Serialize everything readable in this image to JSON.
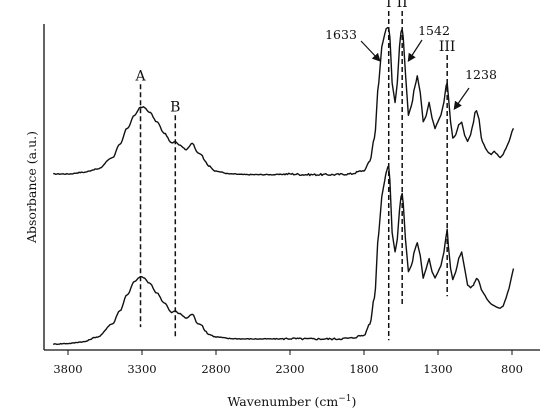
{
  "chart_data": {
    "type": "line",
    "xlabel": "Wavenumber (cm",
    "xlabel_sup": "−1",
    "xlabel_close": ")",
    "ylabel": "Absorbance (a.u.)",
    "x_reversed": true,
    "xlim": [
      4000,
      750
    ],
    "ylim": [
      0,
      1
    ],
    "grid": false,
    "legend": "none",
    "xticks": [
      3800,
      3300,
      2800,
      2300,
      1800,
      1300,
      800
    ],
    "xtick_labels": [
      "3800",
      "3300",
      "2800",
      "2300",
      "1800",
      "1300",
      "800"
    ],
    "series": [
      {
        "color": "#111111",
        "x": [
          3900,
          3800,
          3700,
          3600,
          3500,
          3450,
          3400,
          3350,
          3310,
          3290,
          3250,
          3200,
          3150,
          3100,
          3075,
          3050,
          3000,
          2960,
          2925,
          2900,
          2875,
          2850,
          2800,
          2700,
          2600,
          2500,
          2400,
          2300,
          2200,
          2100,
          2000,
          1900,
          1800,
          1760,
          1730,
          1700,
          1680,
          1660,
          1650,
          1640,
          1633,
          1625,
          1610,
          1590,
          1575,
          1560,
          1550,
          1542,
          1535,
          1520,
          1500,
          1480,
          1455,
          1440,
          1420,
          1400,
          1380,
          1360,
          1340,
          1320,
          1300,
          1280,
          1260,
          1245,
          1238,
          1230,
          1215,
          1200,
          1180,
          1160,
          1140,
          1120,
          1100,
          1080,
          1060,
          1050,
          1040,
          1030,
          1000,
          980,
          960,
          940,
          920,
          900,
          880,
          860,
          840,
          820,
          800,
          790
        ],
        "y": [
          0.54,
          0.54,
          0.545,
          0.555,
          0.59,
          0.63,
          0.68,
          0.72,
          0.745,
          0.745,
          0.73,
          0.7,
          0.665,
          0.635,
          0.64,
          0.63,
          0.615,
          0.635,
          0.605,
          0.6,
          0.58,
          0.565,
          0.548,
          0.54,
          0.538,
          0.538,
          0.538,
          0.54,
          0.538,
          0.538,
          0.538,
          0.54,
          0.55,
          0.58,
          0.65,
          0.82,
          0.93,
          0.97,
          0.985,
          0.988,
          0.988,
          0.96,
          0.82,
          0.76,
          0.82,
          0.93,
          0.975,
          0.985,
          0.96,
          0.85,
          0.72,
          0.75,
          0.81,
          0.84,
          0.79,
          0.7,
          0.72,
          0.76,
          0.71,
          0.68,
          0.7,
          0.72,
          0.76,
          0.81,
          0.82,
          0.78,
          0.7,
          0.65,
          0.66,
          0.69,
          0.7,
          0.66,
          0.64,
          0.66,
          0.7,
          0.73,
          0.735,
          0.72,
          0.64,
          0.62,
          0.605,
          0.6,
          0.61,
          0.6,
          0.59,
          0.6,
          0.62,
          0.64,
          0.67,
          0.68
        ]
      },
      {
        "color": "#111111",
        "x": [
          3900,
          3800,
          3700,
          3600,
          3500,
          3450,
          3400,
          3350,
          3310,
          3290,
          3250,
          3200,
          3150,
          3100,
          3075,
          3050,
          3000,
          2960,
          2925,
          2900,
          2875,
          2850,
          2800,
          2700,
          2600,
          2500,
          2400,
          2300,
          2200,
          2100,
          2000,
          1900,
          1800,
          1760,
          1730,
          1700,
          1680,
          1660,
          1650,
          1640,
          1633,
          1625,
          1610,
          1590,
          1575,
          1560,
          1550,
          1542,
          1535,
          1520,
          1500,
          1480,
          1455,
          1440,
          1420,
          1400,
          1380,
          1360,
          1340,
          1320,
          1300,
          1280,
          1260,
          1245,
          1238,
          1230,
          1215,
          1200,
          1180,
          1160,
          1140,
          1120,
          1100,
          1080,
          1060,
          1050,
          1040,
          1030,
          1000,
          980,
          960,
          940,
          920,
          900,
          880,
          860,
          840,
          820,
          800,
          790
        ],
        "y": [
          0.018,
          0.02,
          0.025,
          0.04,
          0.08,
          0.12,
          0.17,
          0.21,
          0.225,
          0.222,
          0.205,
          0.175,
          0.145,
          0.115,
          0.12,
          0.112,
          0.098,
          0.11,
          0.082,
          0.078,
          0.06,
          0.048,
          0.04,
          0.035,
          0.034,
          0.034,
          0.034,
          0.035,
          0.034,
          0.034,
          0.034,
          0.036,
          0.045,
          0.08,
          0.16,
          0.36,
          0.47,
          0.52,
          0.545,
          0.56,
          0.565,
          0.52,
          0.36,
          0.3,
          0.34,
          0.43,
          0.47,
          0.48,
          0.45,
          0.34,
          0.24,
          0.26,
          0.31,
          0.33,
          0.29,
          0.22,
          0.25,
          0.28,
          0.24,
          0.22,
          0.24,
          0.26,
          0.3,
          0.35,
          0.37,
          0.32,
          0.25,
          0.215,
          0.24,
          0.28,
          0.3,
          0.25,
          0.2,
          0.19,
          0.2,
          0.21,
          0.22,
          0.215,
          0.18,
          0.165,
          0.15,
          0.14,
          0.135,
          0.13,
          0.128,
          0.135,
          0.16,
          0.19,
          0.23,
          0.25
        ]
      }
    ],
    "vlines": [
      {
        "x": 3310,
        "label": "A",
        "y_top": 0.815,
        "y_bottom": 0.07
      },
      {
        "x": 3075,
        "label": "B",
        "y_top": 0.72,
        "y_bottom": 0.04
      },
      {
        "x": 1633,
        "label": "I",
        "y_top": 1.04,
        "y_bottom": 0.03
      },
      {
        "x": 1542,
        "label": "II",
        "y_top": 1.04,
        "y_bottom": 0.14
      },
      {
        "x": 1238,
        "label": "III",
        "y_top": 0.905,
        "y_bottom": 0.165
      }
    ],
    "peak_annotations": [
      {
        "label": "1633",
        "x": 1633
      },
      {
        "label": "1542",
        "x": 1542
      },
      {
        "label": "1238",
        "x": 1238
      }
    ]
  }
}
